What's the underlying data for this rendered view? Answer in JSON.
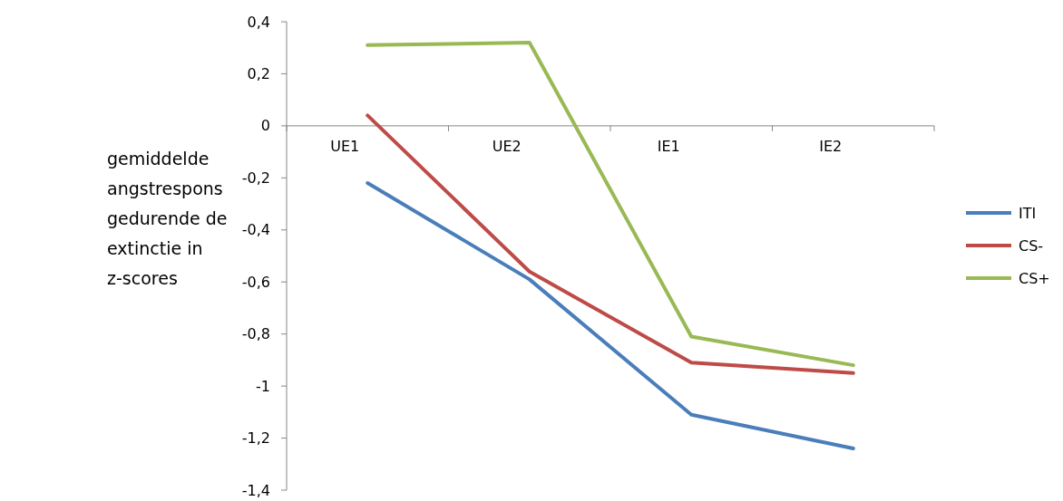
{
  "chart_data": {
    "type": "line",
    "ylabel": "gemiddelde angstrespons gedurende de extinctie in z-scores",
    "categories": [
      "UE1",
      "UE2",
      "IE1",
      "IE2"
    ],
    "series": [
      {
        "name": "ITI",
        "color": "#4a7ebb",
        "values": [
          -0.22,
          -0.59,
          -1.11,
          -1.24
        ]
      },
      {
        "name": "CS-",
        "color": "#be4b48",
        "values": [
          0.04,
          -0.56,
          -0.91,
          -0.95
        ]
      },
      {
        "name": "CS+",
        "color": "#98b954",
        "values": [
          0.31,
          0.32,
          -0.81,
          -0.92
        ]
      }
    ],
    "ylim": [
      -1.4,
      0.4
    ],
    "yticks": [
      {
        "value": -1.4,
        "label": "-1,4"
      },
      {
        "value": -1.2,
        "label": "-1,2"
      },
      {
        "value": -1,
        "label": "-1"
      },
      {
        "value": -0.8,
        "label": "-0,8"
      },
      {
        "value": -0.6,
        "label": "-0,6"
      },
      {
        "value": -0.4,
        "label": "-0,4"
      },
      {
        "value": -0.2,
        "label": "-0,2"
      },
      {
        "value": 0,
        "label": "0"
      },
      {
        "value": 0.2,
        "label": "0,2"
      },
      {
        "value": 0.4,
        "label": "0,4"
      }
    ],
    "grid": false,
    "legend": "right",
    "marker": "none",
    "line_style": "solid"
  }
}
